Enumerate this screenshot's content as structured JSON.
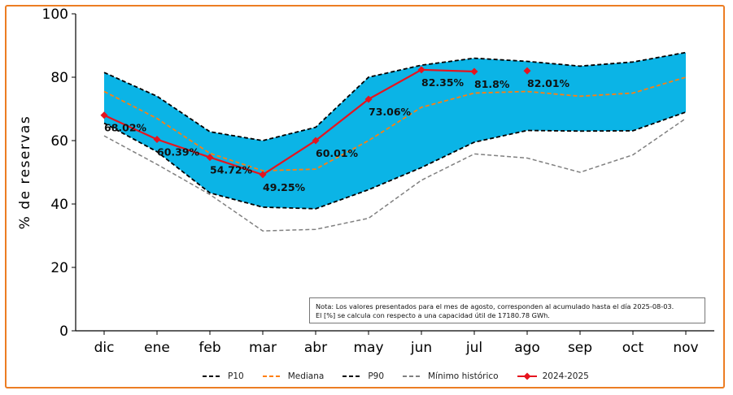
{
  "chart_data": {
    "type": "area",
    "ylabel": "% de reservas",
    "xlabel": "",
    "ylim": [
      0,
      100
    ],
    "yticks": [
      0,
      20,
      40,
      60,
      80,
      100
    ],
    "categories": [
      "dic",
      "ene",
      "feb",
      "mar",
      "abr",
      "may",
      "jun",
      "jul",
      "ago",
      "sep",
      "oct",
      "nov"
    ],
    "band_color": "#0bb4e6",
    "series": [
      {
        "name": "P10",
        "style": "dashed",
        "color": "#000000",
        "values": [
          65.5,
          56.5,
          43.5,
          39.0,
          38.5,
          44.5,
          51.5,
          59.5,
          63.2,
          63.0,
          63.1,
          69.0
        ]
      },
      {
        "name": "Mediana",
        "style": "dashed",
        "color": "#ff7f0e",
        "values": [
          75.5,
          67.0,
          56.0,
          50.5,
          51.0,
          60.0,
          70.5,
          75.0,
          75.5,
          74.0,
          75.0,
          80.0
        ]
      },
      {
        "name": "P90",
        "style": "dashed",
        "color": "#000000",
        "values": [
          81.5,
          74.0,
          62.8,
          60.0,
          64.2,
          80.0,
          83.8,
          86.0,
          85.0,
          83.5,
          84.8,
          87.8
        ]
      },
      {
        "name": "Mínimo histórico",
        "style": "dashed",
        "color": "#808080",
        "values": [
          61.5,
          52.5,
          43.0,
          31.5,
          32.0,
          35.5,
          47.5,
          55.8,
          54.5,
          50.0,
          55.5,
          67.0
        ]
      },
      {
        "name": "2024-2025",
        "style": "solid-marker",
        "color": "#e6141e",
        "values": [
          68.02,
          60.39,
          54.72,
          49.25,
          60.01,
          73.06,
          82.35,
          81.8,
          82.01,
          null,
          null,
          null
        ],
        "labels": [
          "68.02%",
          "60.39%",
          "54.72%",
          "49.25%",
          "60.01%",
          "73.06%",
          "82.35%",
          "81.8%",
          "82.01%",
          "",
          "",
          ""
        ]
      }
    ],
    "legend_position": "bottom-center",
    "note": {
      "line1": "Nota: Los valores presentados para el mes de agosto, corresponden al acumulado hasta el día 2025-08-03.",
      "line2": "El [%] se calcula con respecto a una capacidad útil de 17180.78 GWh."
    }
  },
  "legend": [
    {
      "label": "P10",
      "color": "#000000",
      "style": "dashed"
    },
    {
      "label": "Mediana",
      "color": "#ff7f0e",
      "style": "dashed"
    },
    {
      "label": "P90",
      "color": "#000000",
      "style": "dashed"
    },
    {
      "label": "Mínimo histórico",
      "color": "#808080",
      "style": "dashed"
    },
    {
      "label": "2024-2025",
      "color": "#e6141e",
      "style": "solid-marker"
    }
  ]
}
